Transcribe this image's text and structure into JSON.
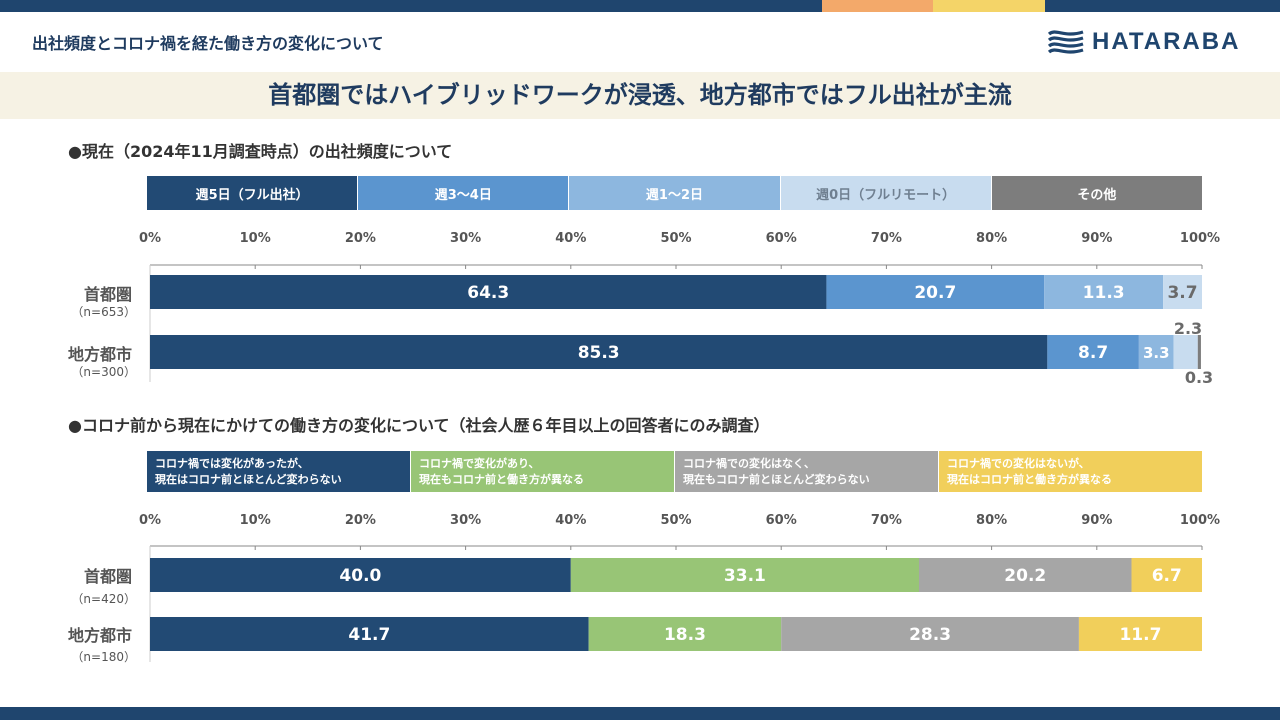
{
  "colors": {
    "navy": "#224a74",
    "blue": "#5b95cf",
    "light_blue": "#8db7df",
    "pale_blue": "#c8dcef",
    "gray_dark": "#7d7d7d",
    "green": "#98c576",
    "gray": "#a6a6a6",
    "yellow": "#f1cf5b",
    "top_orange": "#f3a96a",
    "top_yellow": "#f4d468",
    "top_navy": "#1f456e"
  },
  "header": {
    "title": "出社頻度とコロナ禍を経た働き方の変化について",
    "logo_text": "HATARABA",
    "logo_icon": "wave-logo-icon"
  },
  "headline": "首都圏ではハイブリッドワークが浸透、地方都市ではフル出社が主流",
  "chart_data": [
    {
      "type": "bar",
      "stacked": true,
      "orientation": "horizontal",
      "title": "●現在（2024年11月調査時点）の出社頻度について",
      "xlim": [
        0,
        100
      ],
      "ticks": [
        "0%",
        "10%",
        "20%",
        "30%",
        "40%",
        "50%",
        "60%",
        "70%",
        "80%",
        "90%",
        "100%"
      ],
      "categories": [
        {
          "name": "首都圏",
          "n": "（n=653）"
        },
        {
          "name": "地方都市",
          "n": "（n=300）"
        }
      ],
      "series": [
        {
          "name": "週5日（フル出社）",
          "color": "#224a74",
          "label_color": "#ffffff",
          "values": [
            64.3,
            85.3
          ]
        },
        {
          "name": "週3～4日",
          "color": "#5b95cf",
          "label_color": "#ffffff",
          "values": [
            20.7,
            8.7
          ]
        },
        {
          "name": "週1～2日",
          "color": "#8db7df",
          "label_color": "#ffffff",
          "values": [
            11.3,
            3.3
          ]
        },
        {
          "name": "週0日（フルリモート）",
          "color": "#c8dcef",
          "label_color": "#ffffff",
          "values": [
            3.7,
            2.3
          ]
        },
        {
          "name": "その他",
          "color": "#7d7d7d",
          "label_color": "#ffffff",
          "values": [
            0,
            0.3
          ]
        }
      ],
      "data_labels": [
        [
          "64.3",
          "20.7",
          "11.3",
          "3.7",
          ""
        ],
        [
          "85.3",
          "8.7",
          "3.3",
          "2.3",
          "0.3"
        ]
      ]
    },
    {
      "type": "bar",
      "stacked": true,
      "orientation": "horizontal",
      "title": "●コロナ前から現在にかけての働き方の変化について（社会人歴６年目以上の回答者にのみ調査）",
      "xlim": [
        0,
        100
      ],
      "ticks": [
        "0%",
        "10%",
        "20%",
        "30%",
        "40%",
        "50%",
        "60%",
        "70%",
        "80%",
        "90%",
        "100%"
      ],
      "categories": [
        {
          "name": "首都圏",
          "n": "（n=420）"
        },
        {
          "name": "地方都市",
          "n": "（n=180）"
        }
      ],
      "series": [
        {
          "name": "コロナ禍では変化があったが、現在はコロナ前とほとんど変わらない",
          "lines": [
            "コロナ禍では変化があったが、",
            "現在はコロナ前とほとんど変わらない"
          ],
          "color": "#224a74",
          "values": [
            40.0,
            41.7
          ]
        },
        {
          "name": "コロナ禍で変化があり、現在もコロナ前と働き方が異なる",
          "lines": [
            "コロナ禍で変化があり、",
            "現在もコロナ前と働き方が異なる"
          ],
          "color": "#98c576",
          "values": [
            33.1,
            18.3
          ]
        },
        {
          "name": "コロナ禍での変化はなく、現在もコロナ前とほとんど変わらない",
          "lines": [
            "コロナ禍での変化はなく、",
            "現在もコロナ前とほとんど変わらない"
          ],
          "color": "#a6a6a6",
          "values": [
            20.2,
            28.3
          ]
        },
        {
          "name": "コロナ禍での変化はないが、現在はコロナ前と働き方が異なる",
          "lines": [
            "コロナ禍での変化はないが、",
            "現在はコロナ前と働き方が異なる"
          ],
          "color": "#f1cf5b",
          "values": [
            6.7,
            11.7
          ]
        }
      ],
      "data_labels": [
        [
          "40.0",
          "33.1",
          "20.2",
          "6.7"
        ],
        [
          "41.7",
          "18.3",
          "28.3",
          "11.7"
        ]
      ]
    }
  ]
}
